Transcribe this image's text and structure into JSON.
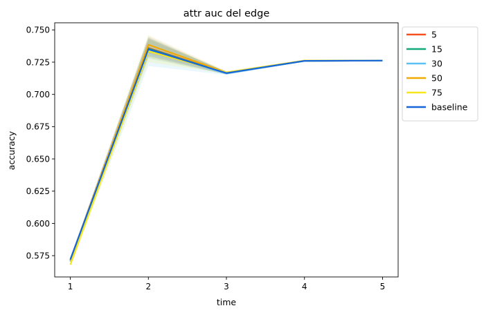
{
  "chart_data": {
    "type": "line",
    "title": "attr auc del edge",
    "xlabel": "time",
    "ylabel": "accuracy",
    "x": [
      1,
      2,
      3,
      4,
      5
    ],
    "xticks": [
      1,
      2,
      3,
      4,
      5
    ],
    "yticks": [
      0.575,
      0.6,
      0.625,
      0.65,
      0.675,
      0.7,
      0.725,
      0.75
    ],
    "ytick_labels": [
      "0.575",
      "0.600",
      "0.625",
      "0.650",
      "0.675",
      "0.700",
      "0.725",
      "0.750"
    ],
    "xlim": [
      0.8,
      5.2
    ],
    "ylim": [
      0.5585,
      0.7555
    ],
    "grid": false,
    "legend_position": "outside-right",
    "series": [
      {
        "name": "5",
        "color": "#f4511e",
        "values": [
          0.5715,
          0.736,
          0.7165,
          0.726,
          0.7262
        ],
        "band_low": [
          0.57,
          0.729,
          0.7155,
          0.7255,
          0.7258
        ],
        "band_high": [
          0.573,
          0.744,
          0.7175,
          0.7265,
          0.7266
        ]
      },
      {
        "name": "15",
        "color": "#12a97a",
        "values": [
          0.5712,
          0.7355,
          0.7165,
          0.726,
          0.7262
        ],
        "band_low": [
          0.5695,
          0.728,
          0.7155,
          0.7255,
          0.7258
        ],
        "band_high": [
          0.573,
          0.744,
          0.7175,
          0.7265,
          0.7266
        ]
      },
      {
        "name": "30",
        "color": "#5bc0f2",
        "values": [
          0.5705,
          0.7345,
          0.7162,
          0.726,
          0.7262
        ],
        "band_low": [
          0.5685,
          0.722,
          0.715,
          0.7255,
          0.7258
        ],
        "band_high": [
          0.5725,
          0.745,
          0.7175,
          0.7265,
          0.7266
        ]
      },
      {
        "name": "50",
        "color": "#f1a900",
        "values": [
          0.5715,
          0.7385,
          0.717,
          0.7262,
          0.7263
        ],
        "band_low": [
          0.57,
          0.732,
          0.716,
          0.7257,
          0.7259
        ],
        "band_high": [
          0.573,
          0.746,
          0.718,
          0.7267,
          0.7267
        ]
      },
      {
        "name": "75",
        "color": "#f5e71b",
        "values": [
          0.568,
          0.7335,
          0.717,
          0.7262,
          0.7263
        ],
        "band_low": [
          0.566,
          0.725,
          0.716,
          0.7257,
          0.7259
        ],
        "band_high": [
          0.57,
          0.743,
          0.718,
          0.7267,
          0.7267
        ]
      },
      {
        "name": "baseline",
        "color": "#1565d8",
        "values": [
          0.572,
          0.735,
          0.7165,
          0.726,
          0.7262
        ],
        "band_low": [
          0.5705,
          0.73,
          0.7155,
          0.7255,
          0.7258
        ],
        "band_high": [
          0.5735,
          0.743,
          0.7175,
          0.7265,
          0.7266
        ]
      }
    ]
  }
}
